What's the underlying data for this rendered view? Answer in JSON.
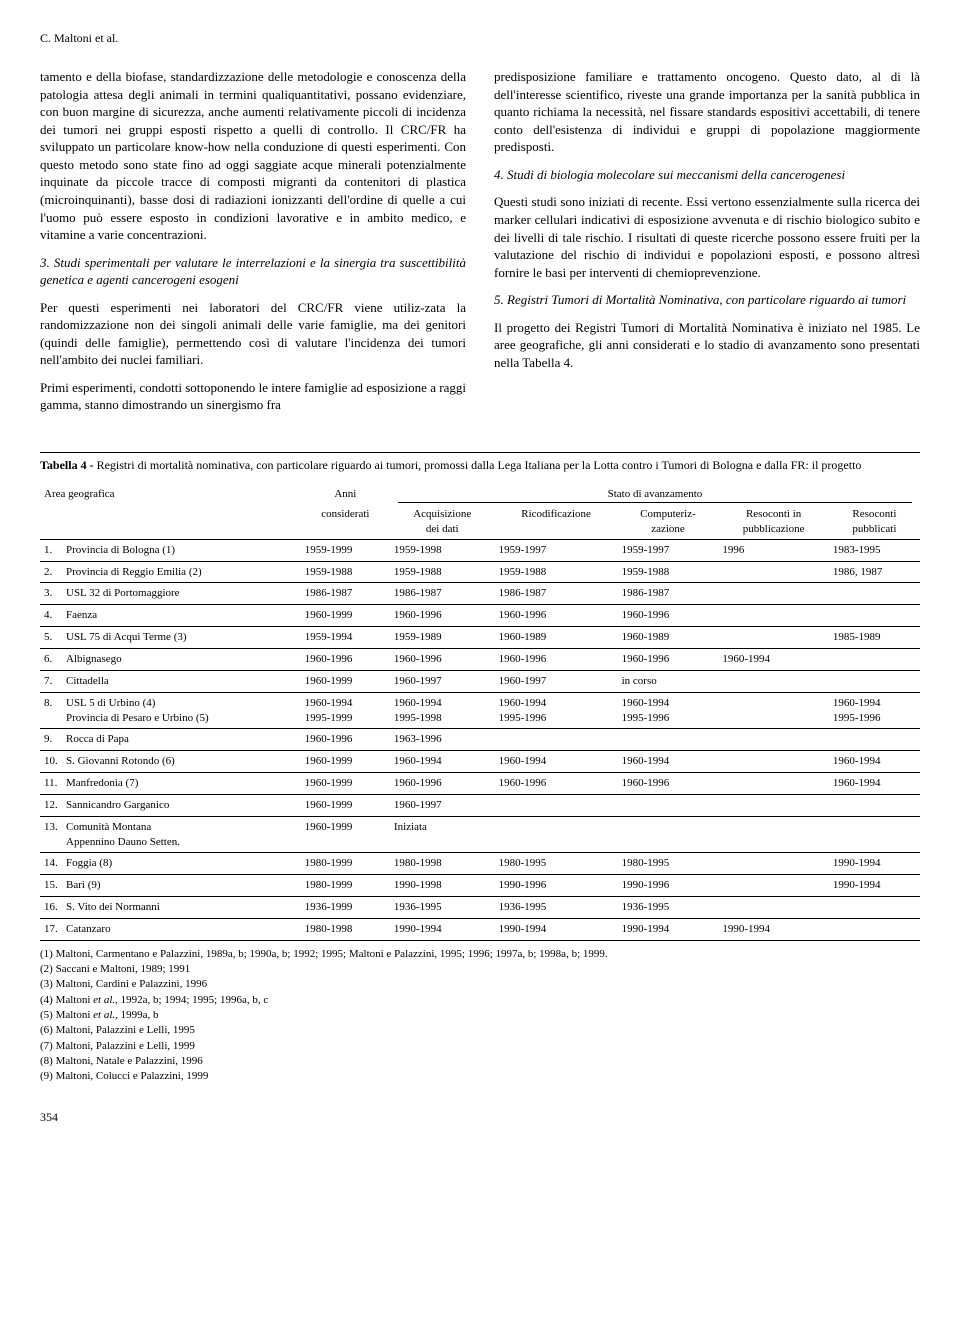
{
  "running_head": "C. Maltoni et al.",
  "page_number": "354",
  "left_column": {
    "p1": "tamento e della biofase, standardizzazione delle metodologie e conoscenza della patologia attesa degli animali in termini qualiquantitativi, possano evidenziare, con buon margine di sicurezza, anche aumenti relativamente piccoli di incidenza dei tumori nei gruppi esposti rispetto a quelli di controllo. Il CRC/FR ha sviluppato un particolare know-how nella conduzione di questi esperimenti. Con questo metodo sono state fino ad oggi saggiate acque minerali potenzialmente inquinate da piccole tracce di composti migranti da contenitori di plastica (microinquinanti), basse dosi di radiazioni ionizzanti dell'ordine di quelle a cui l'uomo può essere esposto in condizioni lavorative e in ambito medico, e vitamine a varie concentrazioni.",
    "sec3": "3. Studi sperimentali per valutare le interrelazioni e la sinergia tra suscettibilità genetica e agenti cancerogeni esogeni",
    "p2": "Per questi esperimenti nei laboratori del CRC/FR viene utiliz-zata la randomizzazione non dei singoli animali delle varie famiglie, ma dei genitori (quindi delle famiglie), permettendo così di valutare l'incidenza dei tumori nell'ambito dei nuclei familiari.",
    "p3": "Primi esperimenti, condotti sottoponendo le intere famiglie ad esposizione a raggi gamma, stanno dimostrando un sinergismo fra"
  },
  "right_column": {
    "p1": "predisposizione familiare e trattamento oncogeno. Questo dato, al di là dell'interesse scientifico, riveste una grande importanza per la sanità pubblica in quanto richiama la necessità, nel fissare standards espositivi accettabili, di tenere conto dell'esistenza di individui e gruppi di popolazione maggiormente predisposti.",
    "sec4": "4. Studi di biologia molecolare sui meccanismi della cancerogenesi",
    "p2": "Questi studi sono iniziati di recente. Essi vertono essenzialmente sulla ricerca dei marker cellulari indicativi di esposizione avvenuta e di rischio biologico subito e dei livelli di tale rischio. I risultati di queste ricerche possono essere fruiti per la valutazione del rischio di individui e popolazioni esposti, e possono altresì fornire le basi per interventi di chemioprevenzione.",
    "sec5": "5. Registri Tumori di Mortalità Nominativa, con particolare riguardo ai tumori",
    "p3": "Il progetto dei Registri Tumori di Mortalità Nominativa è iniziato nel 1985. Le aree geografiche, gli anni considerati e lo stadio di avanzamento sono presentati nella Tabella 4."
  },
  "table": {
    "caption_label": "Tabella 4 - ",
    "caption": "Registri di mortalità nominativa, con particolare riguardo ai tumori, promossi dalla Lega Italiana per la Lotta contro i Tumori di Bologna e dalla FR: il progetto",
    "headers": {
      "area": "Area geografica",
      "anni": "Anni",
      "considerati": "considerati",
      "stato": "Stato di avanzamento",
      "c1a": "Acquisizione",
      "c1b": "dei dati",
      "c2": "Ricodificazione",
      "c3a": "Computeriz-",
      "c3b": "zazione",
      "c4a": "Resoconti in",
      "c4b": "pubblicazione",
      "c5a": "Resoconti",
      "c5b": "pubblicati"
    },
    "rows": [
      {
        "n": "1.",
        "area": "Provincia di Bologna (1)",
        "anni": "1959-1999",
        "c1": "1959-1998",
        "c2": "1959-1997",
        "c3": "1959-1997",
        "c4": "1996",
        "c5": "1983-1995"
      },
      {
        "n": "2.",
        "area": "Provincia di Reggio Emilia (2)",
        "anni": "1959-1988",
        "c1": "1959-1988",
        "c2": "1959-1988",
        "c3": "1959-1988",
        "c4": "",
        "c5": "1986, 1987"
      },
      {
        "n": "3.",
        "area": "USL 32 di Portomaggiore",
        "anni": "1986-1987",
        "c1": "1986-1987",
        "c2": "1986-1987",
        "c3": "1986-1987",
        "c4": "",
        "c5": ""
      },
      {
        "n": "4.",
        "area": "Faenza",
        "anni": "1960-1999",
        "c1": "1960-1996",
        "c2": "1960-1996",
        "c3": "1960-1996",
        "c4": "",
        "c5": ""
      },
      {
        "n": "5.",
        "area": "USL 75 di Acqui Terme (3)",
        "anni": "1959-1994",
        "c1": "1959-1989",
        "c2": "1960-1989",
        "c3": "1960-1989",
        "c4": "",
        "c5": "1985-1989"
      },
      {
        "n": "6.",
        "area": "Albignasego",
        "anni": "1960-1996",
        "c1": "1960-1996",
        "c2": "1960-1996",
        "c3": "1960-1996",
        "c4": "1960-1994",
        "c5": ""
      },
      {
        "n": "7.",
        "area": "Cittadella",
        "anni": "1960-1999",
        "c1": "1960-1997",
        "c2": "1960-1997",
        "c3": "in corso",
        "c4": "",
        "c5": ""
      },
      {
        "n": "8.",
        "area": "USL 5 di Urbino (4)",
        "area2": "Provincia di Pesaro e Urbino (5)",
        "anni": "1960-1994",
        "anni2": "1995-1999",
        "c1": "1960-1994",
        "c1b": "1995-1998",
        "c2": "1960-1994",
        "c2b": "1995-1996",
        "c3": "1960-1994",
        "c3b": "1995-1996",
        "c4": "",
        "c5": "1960-1994",
        "c5b": "1995-1996"
      },
      {
        "n": "9.",
        "area": "Rocca di Papa",
        "anni": "1960-1996",
        "c1": "1963-1996",
        "c2": "",
        "c3": "",
        "c4": "",
        "c5": ""
      },
      {
        "n": "10.",
        "area": "S. Giovanni Rotondo (6)",
        "anni": "1960-1999",
        "c1": "1960-1994",
        "c2": "1960-1994",
        "c3": "1960-1994",
        "c4": "",
        "c5": "1960-1994"
      },
      {
        "n": "11.",
        "area": "Manfredonia (7)",
        "anni": "1960-1999",
        "c1": "1960-1996",
        "c2": "1960-1996",
        "c3": "1960-1996",
        "c4": "",
        "c5": "1960-1994"
      },
      {
        "n": "12.",
        "area": "Sannicandro Garganico",
        "anni": "1960-1999",
        "c1": "1960-1997",
        "c2": "",
        "c3": "",
        "c4": "",
        "c5": ""
      },
      {
        "n": "13.",
        "area": "Comunità Montana",
        "area2": "Appennino Dauno Setten.",
        "anni": "1960-1999",
        "c1": "Iniziata",
        "c2": "",
        "c3": "",
        "c4": "",
        "c5": ""
      },
      {
        "n": "14.",
        "area": "Foggia (8)",
        "anni": "1980-1999",
        "c1": "1980-1998",
        "c2": "1980-1995",
        "c3": "1980-1995",
        "c4": "",
        "c5": "1990-1994"
      },
      {
        "n": "15.",
        "area": "Bari (9)",
        "anni": "1980-1999",
        "c1": "1990-1998",
        "c2": "1990-1996",
        "c3": "1990-1996",
        "c4": "",
        "c5": "1990-1994"
      },
      {
        "n": "16.",
        "area": "S. Vito dei Normanni",
        "anni": "1936-1999",
        "c1": "1936-1995",
        "c2": "1936-1995",
        "c3": "1936-1995",
        "c4": "",
        "c5": ""
      },
      {
        "n": "17.",
        "area": "Catanzaro",
        "anni": "1980-1998",
        "c1": "1990-1994",
        "c2": "1990-1994",
        "c3": "1990-1994",
        "c4": "1990-1994",
        "c5": ""
      }
    ],
    "footnotes": [
      "(1) Maltoni, Carmentano e Palazzini, 1989a, b; 1990a, b; 1992; 1995; Maltoni e Palazzini, 1995; 1996; 1997a, b; 1998a, b; 1999.",
      "(2) Saccani e Maltoni, 1989; 1991",
      "(3) Maltoni, Cardini e Palazzini, 1996",
      "(4) Maltoni et al., 1992a, b; 1994; 1995; 1996a, b, c",
      "(5) Maltoni et al., 1999a, b",
      "(6) Maltoni, Palazzini e Lelli, 1995",
      "(7) Maltoni, Palazzini e Lelli, 1999",
      "(8) Maltoni, Natale e Palazzini, 1996",
      "(9) Maltoni, Colucci e Palazzini, 1999"
    ]
  }
}
